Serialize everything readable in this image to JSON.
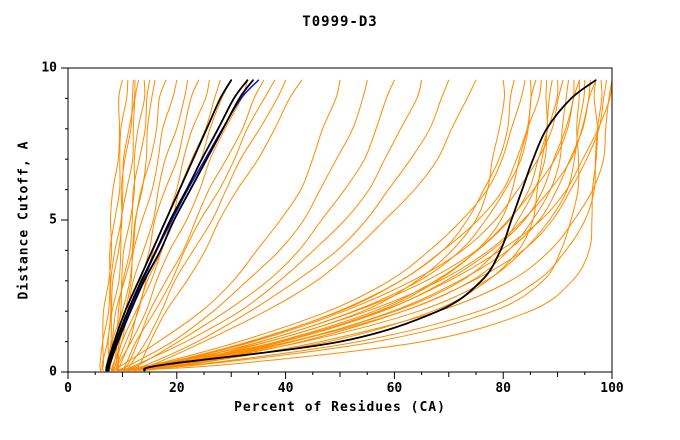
{
  "title": "T0999-D3",
  "chart_data": {
    "type": "line",
    "title": "T0999-D3",
    "xlabel": "Percent of Residues (CA)",
    "ylabel": "Distance Cutoff, A",
    "xlim": [
      0,
      100
    ],
    "ylim": [
      0,
      10
    ],
    "x_major_ticks": [
      0,
      20,
      40,
      60,
      80,
      100
    ],
    "x_minor_step": 5,
    "y_major_ticks": [
      0,
      5,
      10
    ],
    "y_minor_step": 1,
    "grid": false,
    "legend": "none",
    "colors": {
      "orange": "#ff8c00",
      "black": "#000000",
      "blue": "#1414cc"
    },
    "y_levels": [
      0.05,
      0.25,
      1,
      2,
      3,
      4,
      5,
      6,
      7,
      8,
      9,
      9.6
    ],
    "series": [
      {
        "color": "orange",
        "x": [
          6.0,
          6.1,
          6.5,
          6.9,
          7.3,
          7.7,
          8.1,
          8.5,
          8.9,
          9.3,
          9.7,
          10.0
        ]
      },
      {
        "color": "orange",
        "x": [
          6.0,
          6.2,
          6.6,
          7.1,
          7.6,
          8.1,
          8.6,
          9.1,
          9.6,
          10.1,
          10.6,
          11.0
        ]
      },
      {
        "color": "orange",
        "x": [
          7.0,
          7.1,
          7.5,
          8.1,
          8.6,
          9.1,
          9.6,
          10.1,
          10.7,
          11.2,
          11.7,
          12.0
        ]
      },
      {
        "color": "orange",
        "x": [
          7.0,
          7.2,
          7.7,
          8.3,
          9.0,
          9.6,
          10.2,
          10.8,
          11.5,
          12.1,
          12.7,
          13.0
        ]
      },
      {
        "color": "orange",
        "x": [
          8.0,
          8.2,
          8.7,
          9.3,
          10.0,
          10.6,
          11.2,
          11.9,
          12.5,
          13.1,
          13.7,
          14.0
        ]
      },
      {
        "color": "orange",
        "x": [
          8.0,
          8.2,
          8.8,
          9.6,
          10.3,
          11.0,
          11.7,
          12.4,
          13.1,
          13.8,
          14.6,
          15.0
        ]
      },
      {
        "color": "orange",
        "x": [
          9.0,
          9.2,
          9.8,
          10.5,
          11.2,
          12.0,
          12.7,
          13.4,
          14.1,
          14.9,
          15.6,
          16.0
        ]
      },
      {
        "color": "orange",
        "x": [
          6.5,
          6.6,
          7.0,
          7.6,
          8.2,
          8.8,
          9.4,
          10.0,
          10.6,
          11.2,
          11.8,
          12.3
        ]
      },
      {
        "color": "orange",
        "x": [
          7.0,
          7.3,
          8.1,
          9.2,
          10.3,
          11.5,
          12.6,
          13.8,
          14.9,
          16.0,
          17.1,
          18.0
        ]
      },
      {
        "color": "orange",
        "x": [
          7.0,
          7.3,
          8.4,
          9.7,
          11.1,
          12.4,
          13.8,
          15.1,
          16.5,
          17.8,
          19.2,
          20.0
        ]
      },
      {
        "color": "orange",
        "x": [
          8.0,
          8.4,
          9.5,
          10.9,
          12.4,
          13.8,
          15.3,
          16.8,
          18.2,
          19.7,
          21.1,
          22.0
        ]
      },
      {
        "color": "orange",
        "x": [
          8.0,
          8.4,
          9.7,
          11.3,
          13.0,
          14.7,
          16.3,
          18.0,
          19.7,
          21.3,
          23.0,
          24.0
        ]
      },
      {
        "color": "orange",
        "x": [
          9.0,
          9.4,
          10.8,
          12.5,
          14.3,
          16.1,
          17.9,
          19.6,
          21.4,
          23.2,
          25.0,
          26.0
        ]
      },
      {
        "color": "orange",
        "x": [
          9.0,
          9.5,
          11.0,
          13.0,
          14.9,
          16.9,
          18.9,
          20.9,
          22.9,
          24.9,
          26.9,
          28.0
        ]
      },
      {
        "color": "orange",
        "x": [
          8.0,
          8.6,
          10.3,
          12.6,
          14.9,
          17.2,
          19.5,
          21.8,
          24.1,
          26.3,
          28.6,
          30.0
        ]
      },
      {
        "color": "orange",
        "x": [
          9.0,
          9.6,
          11.5,
          14.0,
          16.5,
          19.0,
          21.5,
          24.0,
          26.5,
          29.0,
          31.5,
          33.0
        ]
      },
      {
        "color": "orange",
        "x": [
          10.0,
          10.7,
          12.7,
          15.4,
          18.1,
          20.8,
          23.5,
          26.3,
          29.0,
          31.7,
          34.4,
          36.0
        ]
      },
      {
        "color": "orange",
        "x": [
          10.0,
          10.7,
          12.9,
          15.8,
          18.7,
          21.7,
          24.6,
          27.5,
          30.4,
          33.3,
          36.2,
          38.0
        ]
      },
      {
        "color": "orange",
        "x": [
          11.0,
          11.8,
          14.0,
          17.0,
          20.0,
          23.1,
          26.1,
          29.1,
          32.1,
          35.1,
          38.1,
          40.0
        ]
      },
      {
        "color": "orange",
        "x": [
          12.0,
          12.8,
          15.2,
          18.4,
          21.7,
          24.9,
          28.1,
          31.4,
          34.6,
          37.8,
          41.1,
          43.0
        ]
      },
      {
        "color": "orange",
        "x": [
          8.0,
          10.4,
          16.9,
          24.2,
          30.2,
          35.1,
          39.1,
          42.4,
          45.0,
          47.2,
          49.1,
          50.0
        ]
      },
      {
        "color": "orange",
        "x": [
          9.0,
          11.6,
          18.8,
          26.8,
          33.3,
          38.7,
          43.0,
          46.6,
          49.6,
          52.0,
          54.0,
          55.0
        ]
      },
      {
        "color": "orange",
        "x": [
          10.0,
          12.9,
          20.6,
          29.3,
          36.4,
          42.3,
          47.0,
          50.9,
          54.1,
          56.7,
          58.9,
          60.0
        ]
      },
      {
        "color": "orange",
        "x": [
          10.0,
          13.1,
          21.7,
          31.2,
          39.0,
          45.5,
          50.7,
          55.0,
          58.5,
          61.4,
          63.8,
          65.0
        ]
      },
      {
        "color": "orange",
        "x": [
          11.0,
          14.4,
          23.5,
          33.8,
          42.2,
          49.1,
          54.7,
          59.3,
          63.0,
          66.1,
          68.7,
          70.0
        ]
      },
      {
        "color": "orange",
        "x": [
          12.0,
          15.6,
          25.4,
          36.3,
          45.3,
          52.6,
          58.6,
          63.5,
          67.6,
          70.8,
          73.6,
          75.0
        ]
      },
      {
        "color": "orange",
        "x": [
          8.0,
          16.6,
          36.5,
          53.9,
          64.4,
          70.8,
          74.6,
          77.0,
          78.4,
          79.3,
          79.8,
          80.0
        ]
      },
      {
        "color": "orange",
        "x": [
          9.0,
          16.1,
          33.6,
          50.1,
          61.1,
          68.5,
          73.5,
          76.8,
          79.0,
          80.5,
          81.6,
          82.0
        ]
      },
      {
        "color": "orange",
        "x": [
          10.0,
          16.1,
          31.8,
          47.6,
          58.8,
          66.8,
          72.6,
          76.7,
          79.7,
          81.9,
          83.3,
          84.0
        ]
      },
      {
        "color": "orange",
        "x": [
          8.0,
          17.2,
          38.5,
          57.0,
          68.3,
          75.1,
          79.2,
          81.8,
          83.3,
          84.2,
          84.8,
          85.0
        ]
      },
      {
        "color": "orange",
        "x": [
          10.0,
          17.4,
          35.6,
          52.8,
          64.3,
          71.9,
          77.1,
          80.6,
          82.9,
          84.5,
          85.5,
          86.0
        ]
      },
      {
        "color": "orange",
        "x": [
          11.0,
          17.3,
          33.4,
          49.6,
          61.1,
          69.3,
          75.3,
          79.6,
          82.6,
          84.8,
          86.3,
          87.0
        ]
      },
      {
        "color": "orange",
        "x": [
          9.0,
          21.2,
          47.5,
          67.2,
          77.4,
          82.5,
          85.2,
          86.6,
          87.3,
          87.7,
          87.8,
          88.0
        ]
      },
      {
        "color": "orange",
        "x": [
          10.0,
          19.4,
          41.3,
          60.3,
          71.9,
          78.9,
          83.1,
          85.7,
          87.3,
          88.2,
          88.8,
          89.0
        ]
      },
      {
        "color": "orange",
        "x": [
          12.0,
          19.6,
          38.3,
          55.9,
          67.7,
          75.6,
          80.9,
          84.5,
          86.8,
          88.4,
          89.5,
          90.0
        ]
      },
      {
        "color": "orange",
        "x": [
          10.0,
          16.7,
          33.9,
          51.1,
          63.4,
          72.1,
          78.5,
          83.1,
          86.3,
          88.6,
          90.3,
          91.0
        ]
      },
      {
        "color": "orange",
        "x": [
          8.0,
          18.0,
          41.3,
          61.5,
          73.8,
          81.2,
          85.7,
          88.4,
          90.2,
          91.2,
          91.7,
          92.0
        ]
      },
      {
        "color": "orange",
        "x": [
          12.0,
          19.9,
          39.3,
          57.6,
          69.8,
          78.0,
          83.5,
          87.3,
          89.7,
          91.4,
          92.5,
          93.0
        ]
      },
      {
        "color": "orange",
        "x": [
          11.0,
          17.9,
          35.5,
          53.2,
          65.7,
          74.7,
          81.2,
          85.9,
          89.2,
          91.6,
          93.3,
          94.0
        ]
      },
      {
        "color": "orange",
        "x": [
          10.0,
          20.1,
          43.7,
          64.1,
          76.6,
          84.1,
          88.6,
          91.4,
          93.1,
          94.2,
          94.7,
          95.0
        ]
      },
      {
        "color": "orange",
        "x": [
          13.0,
          21.1,
          41.0,
          59.7,
          72.3,
          80.7,
          86.3,
          90.1,
          92.6,
          94.3,
          95.5,
          96.0
        ]
      },
      {
        "color": "orange",
        "x": [
          12.0,
          19.1,
          37.1,
          55.2,
          68.0,
          77.2,
          84.0,
          88.7,
          92.1,
          94.5,
          96.2,
          97.0
        ]
      },
      {
        "color": "orange",
        "x": [
          11.0,
          24.4,
          53.4,
          75.1,
          86.3,
          91.9,
          94.9,
          96.4,
          97.2,
          97.6,
          97.8,
          98.0
        ]
      },
      {
        "color": "orange",
        "x": [
          14.0,
          22.2,
          42.6,
          61.9,
          74.7,
          83.3,
          88.9,
          92.8,
          95.4,
          97.2,
          98.5,
          99.0
        ]
      },
      {
        "color": "orange",
        "x": [
          12.0,
          22.5,
          46.8,
          68.1,
          80.9,
          88.7,
          93.4,
          96.3,
          98.1,
          99.1,
          99.7,
          100.0
        ]
      },
      {
        "color": "orange",
        "x": [
          13.0,
          20.2,
          38.7,
          57.2,
          70.3,
          79.7,
          86.6,
          91.5,
          95.0,
          97.5,
          99.2,
          100.0
        ]
      },
      {
        "color": "orange",
        "x": [
          10.0,
          29.2,
          65.0,
          85.3,
          92.7,
          95.4,
          96.4,
          96.8,
          96.9,
          97.0,
          97.0,
          97.0
        ]
      },
      {
        "color": "orange",
        "x": [
          9.0,
          25.0,
          57.0,
          77.9,
          87.0,
          90.9,
          92.7,
          93.4,
          93.7,
          93.9,
          94.0,
          94.0
        ]
      },
      {
        "color": "blue",
        "x": [
          7.4,
          7.6,
          9.0,
          11.2,
          13.7,
          16.3,
          19.1,
          22.0,
          25.2,
          28.4,
          31.8,
          35.0
        ]
      },
      {
        "color": "black",
        "x": [
          7.0,
          7.2,
          8.5,
          10.5,
          13.0,
          15.5,
          18.0,
          20.5,
          23.0,
          25.5,
          28.0,
          30.0
        ]
      },
      {
        "color": "black",
        "x": [
          7.5,
          7.7,
          9.2,
          11.5,
          14.0,
          17.0,
          19.5,
          22.5,
          25.5,
          28.5,
          31.5,
          34.0
        ]
      },
      {
        "color": "black",
        "x": [
          7.2,
          7.4,
          8.8,
          11.0,
          13.5,
          16.2,
          18.8,
          21.8,
          24.6,
          27.6,
          30.5,
          33.0
        ]
      },
      {
        "color": "black",
        "x": [
          14.0,
          18.0,
          50.0,
          68.0,
          76.0,
          79.5,
          81.5,
          83.5,
          85.5,
          88.0,
          92.5,
          97.0
        ]
      }
    ]
  }
}
